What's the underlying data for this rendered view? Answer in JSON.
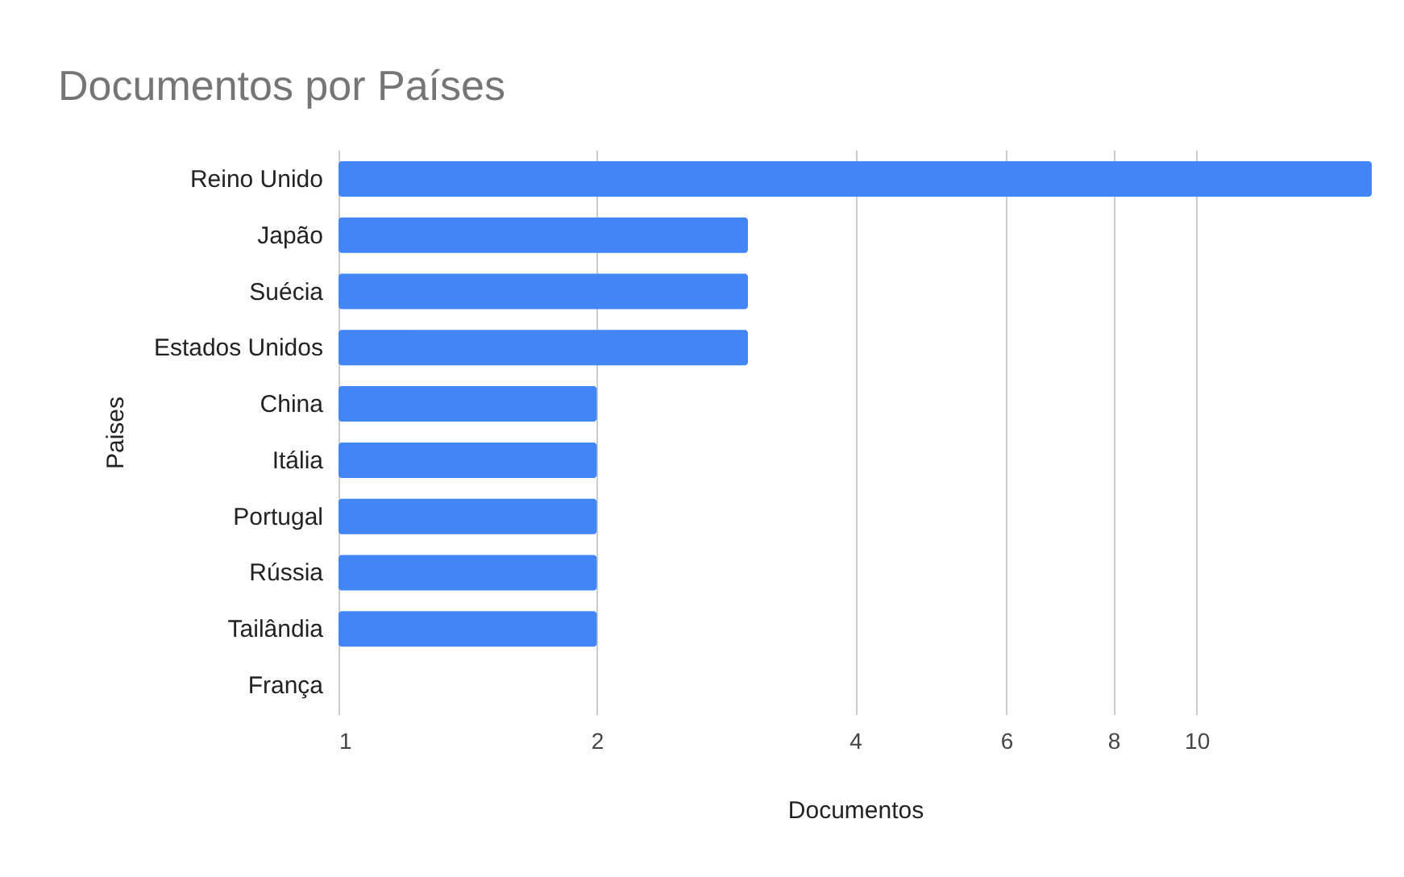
{
  "chart_data": {
    "type": "bar",
    "orientation": "horizontal",
    "title": "Documentos  por Países",
    "xlabel": "Documentos",
    "ylabel": "Paises",
    "categories": [
      "Reino Unido",
      "Japão",
      "Suécia",
      "Estados Unidos",
      "China",
      "Itália",
      "Portugal",
      "Rússia",
      "Tailândia",
      "França"
    ],
    "values": [
      16,
      3,
      3,
      3,
      2,
      2,
      2,
      2,
      2,
      1
    ],
    "color": "#4285f4",
    "log": "x",
    "xlim": [
      1,
      16
    ],
    "xticks": [
      1,
      2,
      4,
      6,
      8,
      10
    ],
    "grid": "x"
  }
}
